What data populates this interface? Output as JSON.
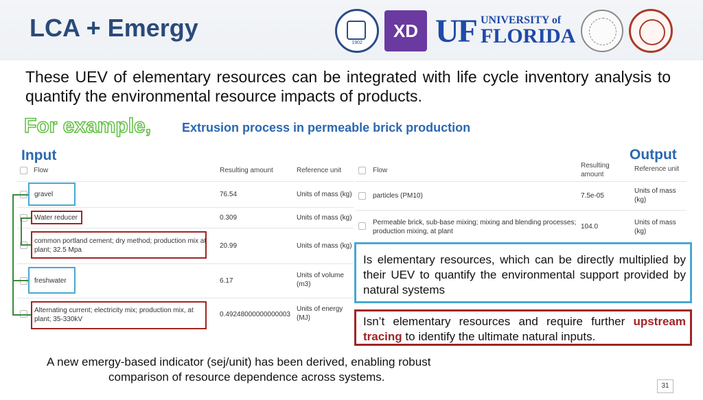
{
  "slide": {
    "title": "LCA + Emergy",
    "page_number": "31"
  },
  "logos": {
    "bnu_year": "1902",
    "xd_text": "XD",
    "uf_mark": "UF",
    "uf_line1": "UNIVERSITY of",
    "uf_line2": "FLORIDA"
  },
  "intro": "These UEV of elementary resources can be integrated with life cycle inventory analysis to quantify the environmental resource impacts of products.",
  "example": {
    "label": "For example,",
    "description": "Extrusion process in permeable brick production"
  },
  "input": {
    "label": "Input",
    "headers": {
      "flow": "Flow",
      "amount": "Resulting amount",
      "unit": "Reference unit"
    },
    "rows": [
      {
        "flow": "gravel",
        "amount": "76.54",
        "unit": "Units of mass (kg)",
        "highlight": "blue"
      },
      {
        "flow": "Water reducer",
        "amount": "0.309",
        "unit": "Units of mass (kg)",
        "highlight": "red"
      },
      {
        "flow": "common portland cement; dry method; production mix at plant; 32.5 Mpa",
        "amount": "20.99",
        "unit": "Units of mass (kg)",
        "highlight": "red"
      },
      {
        "flow": "freshwater",
        "amount": "6.17",
        "unit": "Units of volume (m3)",
        "highlight": "blue"
      },
      {
        "flow": "Alternating current; electricity mix; production mix, at plant; 35-330kV",
        "amount": "0.49248000000000003",
        "unit": "Units of energy (MJ)",
        "highlight": "red"
      }
    ]
  },
  "output": {
    "label": "Output",
    "headers": {
      "flow": "Flow",
      "amount": "Resulting amount",
      "unit": "Reference unit"
    },
    "rows": [
      {
        "flow": "particles (PM10)",
        "amount": "7.5e-05",
        "unit": "Units of mass (kg)"
      },
      {
        "flow": "Permeable brick, sub-base mixing; mixing and blending processes; production mixing, at plant",
        "amount": "104.0",
        "unit": "Units of mass (kg)"
      }
    ]
  },
  "callouts": {
    "blue": "Is elementary resources, which can be directly multiplied by their UEV to quantify the environmental support provided by natural systems",
    "red_prefix": "Isn’t elementary resources and require further",
    "red_emphasis": "upstream tracing",
    "red_suffix": "to identify the ultimate natural inputs."
  },
  "footnote": {
    "line1": "A new emergy-based indicator (sej/unit) has been derived, enabling robust",
    "line2": "comparison of resource dependence across systems."
  },
  "colors": {
    "title": "#2a4a7a",
    "accent_blue": "#2a68b0",
    "box_blue": "#4aa8cf",
    "box_red": "#a02525",
    "example_green": "#5fbf40"
  }
}
